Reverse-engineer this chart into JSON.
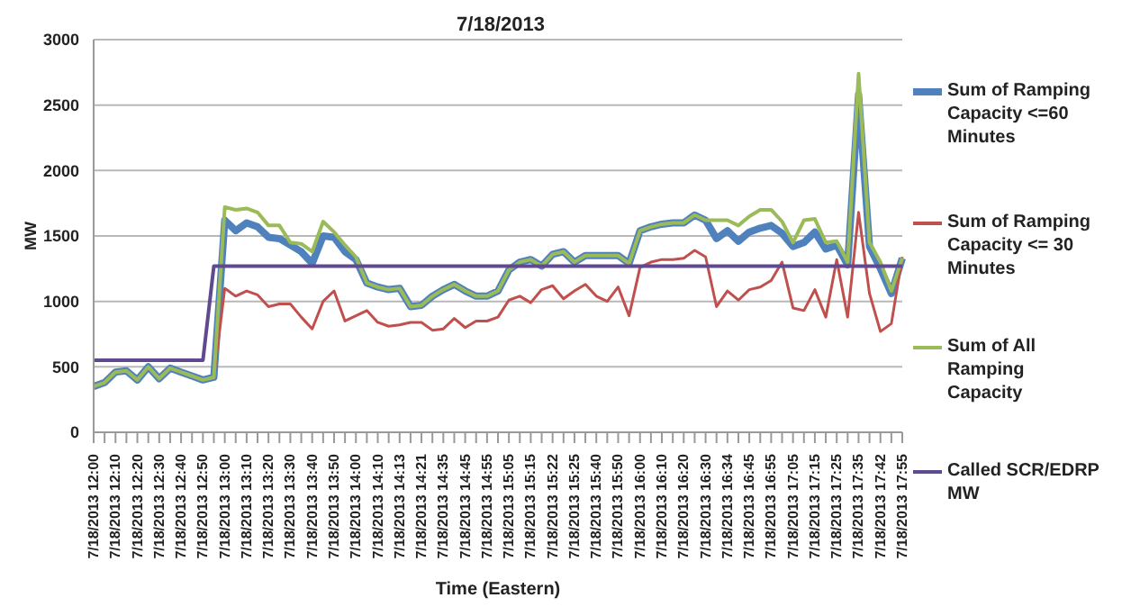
{
  "chart_data": {
    "type": "line",
    "title": "7/18/2013",
    "xlabel": "Time (Eastern)",
    "ylabel": "MW",
    "categories": [
      "7/18/2013 12:00",
      null,
      "7/18/2013 12:10",
      null,
      "7/18/2013 12:20",
      null,
      "7/18/2013 12:30",
      null,
      "7/18/2013 12:40",
      null,
      "7/18/2013 12:50",
      null,
      "7/18/2013 13:00",
      null,
      "7/18/2013 13:10",
      null,
      "7/18/2013 13:20",
      null,
      "7/18/2013 13:30",
      null,
      "7/18/2013 13:40",
      null,
      "7/18/2013 13:50",
      null,
      "7/18/2013 14:00",
      null,
      "7/18/2013 14:10",
      null,
      "7/18/2013 14:13",
      null,
      "7/18/2013 14:21",
      null,
      "7/18/2013 14:35",
      null,
      "7/18/2013 14:45",
      null,
      "7/18/2013 14:55",
      null,
      "7/18/2013 15:05",
      null,
      "7/18/2013 15:15",
      null,
      "7/18/2013 15:22",
      null,
      "7/18/2013 15:25",
      null,
      "7/18/2013 15:40",
      null,
      "7/18/2013 15:50",
      null,
      "7/18/2013 16:00",
      null,
      "7/18/2013 16:10",
      null,
      "7/18/2013 16:20",
      null,
      "7/18/2013 16:30",
      null,
      "7/18/2013 16:34",
      null,
      "7/18/2013 16:45",
      null,
      "7/18/2013 16:55",
      null,
      "7/18/2013 17:05",
      null,
      "7/18/2013 17:15",
      null,
      "7/18/2013 17:25",
      null,
      "7/18/2013 17:35",
      null,
      "7/18/2013 17:42",
      null,
      "7/18/2013 17:55"
    ],
    "series": [
      {
        "name": "Sum of Ramping Capacity <=60 Minutes",
        "color": "#4f81bd",
        "values": [
          350,
          380,
          460,
          470,
          400,
          500,
          410,
          490,
          460,
          430,
          400,
          420,
          1620,
          1540,
          1600,
          1570,
          1490,
          1480,
          1430,
          1380,
          1290,
          1500,
          1490,
          1380,
          1320,
          1140,
          1110,
          1090,
          1100,
          960,
          970,
          1040,
          1090,
          1130,
          1080,
          1040,
          1040,
          1080,
          1240,
          1300,
          1320,
          1270,
          1360,
          1380,
          1300,
          1350,
          1350,
          1350,
          1350,
          1290,
          1540,
          1570,
          1590,
          1600,
          1600,
          1660,
          1620,
          1480,
          1540,
          1460,
          1530,
          1560,
          1580,
          1520,
          1420,
          1450,
          1530,
          1400,
          1430,
          1280,
          2580,
          1420,
          1250,
          1060,
          1330
        ]
      },
      {
        "name": "Sum of Ramping Capacity <= 30 Minutes",
        "color": "#c0504d",
        "values": [
          null,
          null,
          null,
          null,
          null,
          null,
          null,
          null,
          null,
          null,
          400,
          420,
          1100,
          1040,
          1080,
          1050,
          960,
          980,
          980,
          880,
          790,
          1000,
          1080,
          850,
          890,
          930,
          840,
          810,
          820,
          840,
          840,
          780,
          790,
          870,
          800,
          850,
          850,
          880,
          1010,
          1040,
          990,
          1090,
          1120,
          1020,
          1080,
          1130,
          1040,
          1000,
          1110,
          890,
          1260,
          1300,
          1320,
          1320,
          1330,
          1390,
          1340,
          960,
          1080,
          1010,
          1090,
          1110,
          1160,
          1300,
          950,
          930,
          1090,
          880,
          1320,
          880,
          1680,
          1060,
          770,
          830,
          1340
        ]
      },
      {
        "name": "Sum of All Ramping Capacity",
        "color": "#9bbb59",
        "values": [
          350,
          380,
          460,
          470,
          400,
          500,
          410,
          490,
          460,
          430,
          400,
          420,
          1720,
          1700,
          1710,
          1680,
          1580,
          1580,
          1450,
          1440,
          1380,
          1610,
          1530,
          1430,
          1340,
          1140,
          1110,
          1090,
          1100,
          960,
          970,
          1040,
          1090,
          1130,
          1080,
          1040,
          1040,
          1080,
          1240,
          1300,
          1320,
          1270,
          1360,
          1380,
          1300,
          1350,
          1350,
          1350,
          1350,
          1290,
          1540,
          1570,
          1590,
          1600,
          1600,
          1660,
          1620,
          1620,
          1620,
          1580,
          1650,
          1700,
          1700,
          1610,
          1450,
          1620,
          1630,
          1450,
          1460,
          1300,
          2740,
          1450,
          1300,
          1080,
          1330
        ]
      },
      {
        "name": "Called SCR/EDRP MW",
        "color": "#604a8f",
        "values": [
          550,
          550,
          550,
          550,
          550,
          550,
          550,
          550,
          550,
          550,
          550,
          1270,
          1270,
          1270,
          1270,
          1270,
          1270,
          1270,
          1270,
          1270,
          1270,
          1270,
          1270,
          1270,
          1270,
          1270,
          1270,
          1270,
          1270,
          1270,
          1270,
          1270,
          1270,
          1270,
          1270,
          1270,
          1270,
          1270,
          1270,
          1270,
          1270,
          1270,
          1270,
          1270,
          1270,
          1270,
          1270,
          1270,
          1270,
          1270,
          1270,
          1270,
          1270,
          1270,
          1270,
          1270,
          1270,
          1270,
          1270,
          1270,
          1270,
          1270,
          1270,
          1270,
          1270,
          1270,
          1270,
          1270,
          1270,
          1270,
          1270,
          1270,
          1270,
          1270,
          1270
        ]
      }
    ],
    "ylim": [
      0,
      3000
    ],
    "yticks": [
      0,
      500,
      1000,
      1500,
      2000,
      2500,
      3000
    ],
    "grid": "y",
    "legend": "right",
    "marker": "none",
    "line_style": "solid"
  }
}
